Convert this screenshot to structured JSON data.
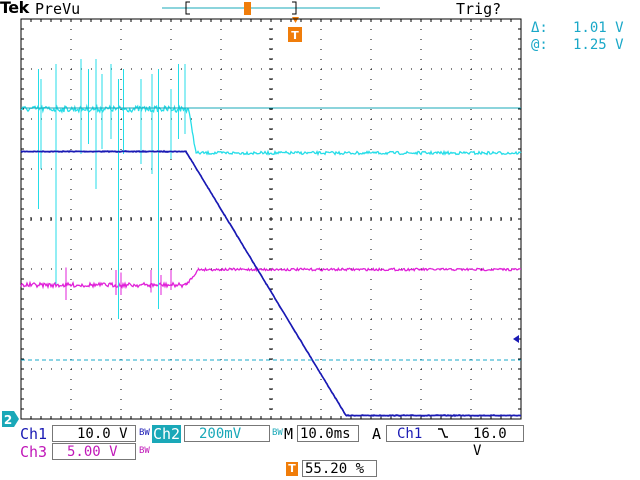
{
  "header": {
    "brand": "Tek",
    "mode": "PreVu",
    "trigger_status": "Trig?"
  },
  "cursor_readout": {
    "delta_symbol": "Δ:",
    "delta_value": "1.01 V",
    "at_symbol": "@:",
    "at_value": "1.25 V"
  },
  "markers": {
    "trigger_marker": "T",
    "ground_marker": "2"
  },
  "bottom": {
    "ch1_label": "Ch1",
    "ch1_scale": "10.0 V",
    "ch2_label": "Ch2",
    "ch2_scale": "200mV",
    "timebase_label": "M",
    "timebase": "10.0ms",
    "trigger_mode": "A",
    "trigger_source": "Ch1",
    "trigger_level": "16.0 V",
    "ch3_label": "Ch3",
    "ch3_scale": "5.00 V",
    "bw_symbol": "BW",
    "trigger_position": "55.20 %"
  },
  "colors": {
    "ch1": "#1a1ab4",
    "ch2": "#25dde8",
    "ch3": "#e020d8",
    "ch2_tag": "#1aa8b8",
    "trigger": "#f07d0a",
    "cursor": "#1aa8c8"
  },
  "chart_data": {
    "type": "line",
    "x_divisions": 10,
    "y_divisions": 8,
    "series": [
      {
        "name": "Ch1",
        "x": [
          0,
          3.3,
          6.5,
          10
        ],
        "y": [
          5.35,
          5.35,
          0.07,
          0.07
        ]
      },
      {
        "name": "Ch2",
        "x": [
          0,
          3.35,
          3.5,
          10
        ],
        "y": [
          6.2,
          6.2,
          5.32,
          5.32
        ]
      },
      {
        "name": "Ch3",
        "x": [
          0,
          3.3,
          3.55,
          10
        ],
        "y": [
          2.68,
          2.68,
          2.99,
          2.99
        ]
      }
    ]
  }
}
